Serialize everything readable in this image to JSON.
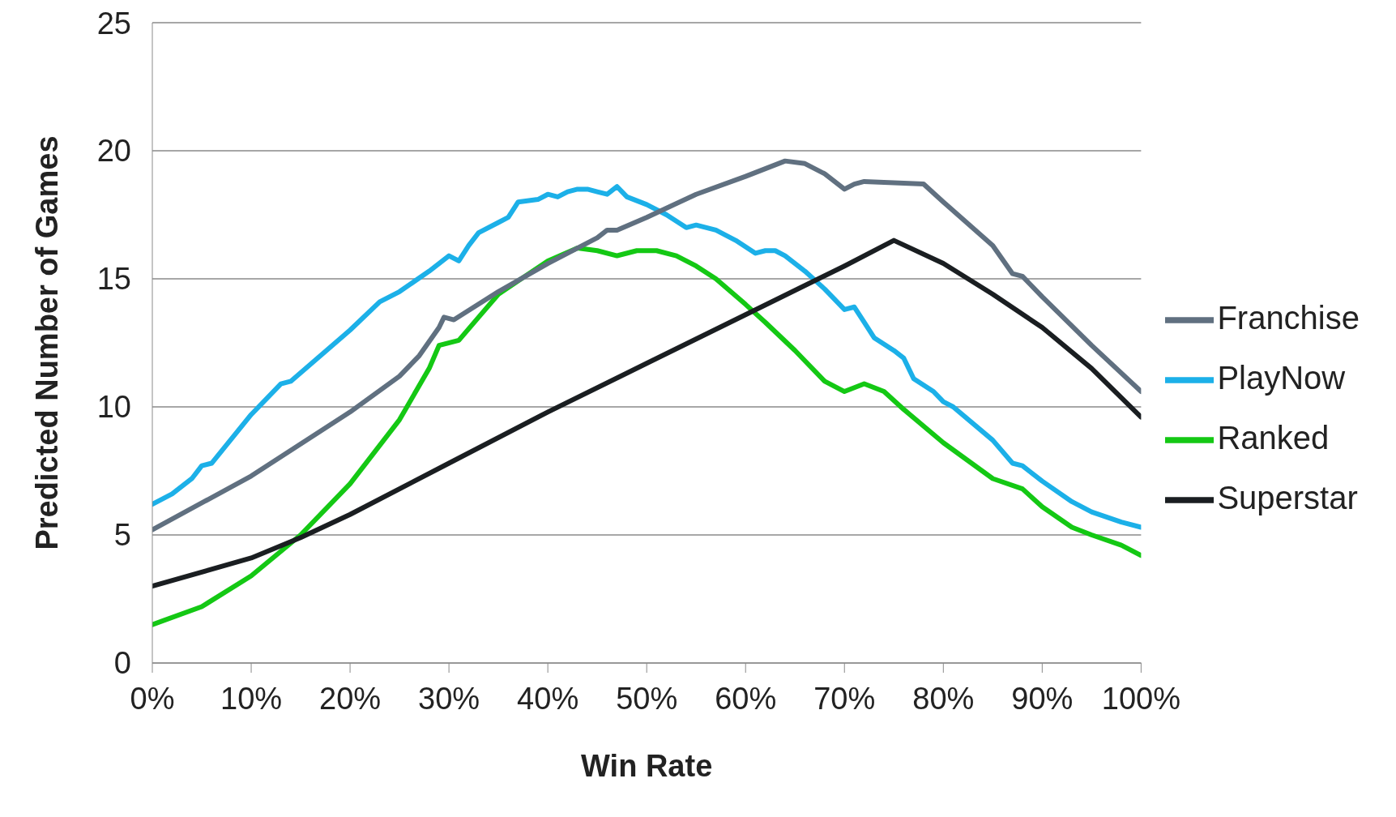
{
  "chart_data": {
    "type": "line",
    "xlabel": "Win Rate",
    "ylabel": "Predicted Number of Games",
    "xlim": [
      0,
      100
    ],
    "xticks": [
      {
        "value": 0,
        "label": "0%"
      },
      {
        "value": 10,
        "label": "10%"
      },
      {
        "value": 20,
        "label": "20%"
      },
      {
        "value": 30,
        "label": "30%"
      },
      {
        "value": 40,
        "label": "40%"
      },
      {
        "value": 50,
        "label": "50%"
      },
      {
        "value": 60,
        "label": "60%"
      },
      {
        "value": 70,
        "label": "70%"
      },
      {
        "value": 80,
        "label": "80%"
      },
      {
        "value": 90,
        "label": "90%"
      },
      {
        "value": 100,
        "label": "100%"
      }
    ],
    "ylim": [
      0,
      25
    ],
    "yticks": [
      0,
      5,
      10,
      15,
      20,
      25
    ],
    "grid": "y",
    "legend": "right",
    "marker": "none",
    "line_style": "solid",
    "series": [
      {
        "name": "PlayNow",
        "color": "#1cb0e8",
        "x": [
          0,
          2,
          4,
          5,
          6,
          10,
          13,
          14,
          20,
          23,
          25,
          28,
          30,
          31,
          32,
          33,
          35,
          36,
          37,
          39,
          40,
          41,
          42,
          43,
          44,
          45,
          46,
          47,
          48,
          50,
          52,
          54,
          55,
          57,
          59,
          61,
          62,
          63,
          64,
          66,
          68,
          70,
          71,
          72,
          73,
          75,
          76,
          77,
          79,
          80,
          81,
          85,
          87,
          88,
          90,
          93,
          95,
          98,
          100
        ],
        "values": [
          6.2,
          6.6,
          7.2,
          7.7,
          7.8,
          9.7,
          10.9,
          11,
          13,
          14.1,
          14.5,
          15.3,
          15.9,
          15.7,
          16.3,
          16.8,
          17.2,
          17.4,
          18,
          18.1,
          18.3,
          18.2,
          18.4,
          18.5,
          18.5,
          18.4,
          18.3,
          18.6,
          18.2,
          17.9,
          17.5,
          17,
          17.1,
          16.9,
          16.5,
          16,
          16.1,
          16.1,
          15.9,
          15.3,
          14.6,
          13.8,
          13.9,
          13.3,
          12.7,
          12.2,
          11.9,
          11.1,
          10.6,
          10.2,
          10,
          8.7,
          7.8,
          7.7,
          7.1,
          6.3,
          5.9,
          5.5,
          5.3
        ]
      },
      {
        "name": "Ranked",
        "color": "#14c814",
        "x": [
          0,
          5,
          10,
          15,
          20,
          25,
          28,
          29,
          31,
          33,
          35,
          40,
          43,
          45,
          47,
          49,
          51,
          53,
          55,
          57,
          60,
          62,
          65,
          68,
          70,
          72,
          74,
          76,
          80,
          85,
          88,
          90,
          93,
          95,
          98,
          100
        ],
        "values": [
          1.5,
          2.2,
          3.4,
          5,
          7,
          9.5,
          11.5,
          12.4,
          12.6,
          13.5,
          14.4,
          15.7,
          16.2,
          16.1,
          15.9,
          16.1,
          16.1,
          15.9,
          15.5,
          15,
          14,
          13.3,
          12.2,
          11,
          10.6,
          10.9,
          10.6,
          9.9,
          8.6,
          7.2,
          6.8,
          6.1,
          5.3,
          5,
          4.6,
          4.2
        ]
      },
      {
        "name": "Superstar",
        "color": "#1a1e21",
        "x": [
          0,
          10,
          15,
          20,
          30,
          40,
          50,
          60,
          70,
          75,
          80,
          85,
          90,
          95,
          100
        ],
        "values": [
          3,
          4.1,
          4.9,
          5.8,
          7.8,
          9.8,
          11.7,
          13.6,
          15.5,
          16.5,
          15.6,
          14.4,
          13.1,
          11.5,
          9.6
        ]
      },
      {
        "name": "Franchise",
        "color": "#607080",
        "x": [
          0,
          10,
          20,
          25,
          27,
          29,
          29.5,
          30.5,
          35,
          40,
          45,
          46,
          47,
          50,
          55,
          60,
          64,
          66,
          68,
          70,
          71,
          72,
          78,
          80,
          85,
          87,
          88,
          90,
          95,
          100
        ],
        "values": [
          5.2,
          7.3,
          9.8,
          11.2,
          12,
          13.1,
          13.5,
          13.4,
          14.5,
          15.6,
          16.6,
          16.9,
          16.9,
          17.4,
          18.3,
          19,
          19.6,
          19.5,
          19.1,
          18.5,
          18.7,
          18.8,
          18.7,
          18,
          16.3,
          15.2,
          15.1,
          14.3,
          12.4,
          10.6
        ]
      }
    ]
  }
}
